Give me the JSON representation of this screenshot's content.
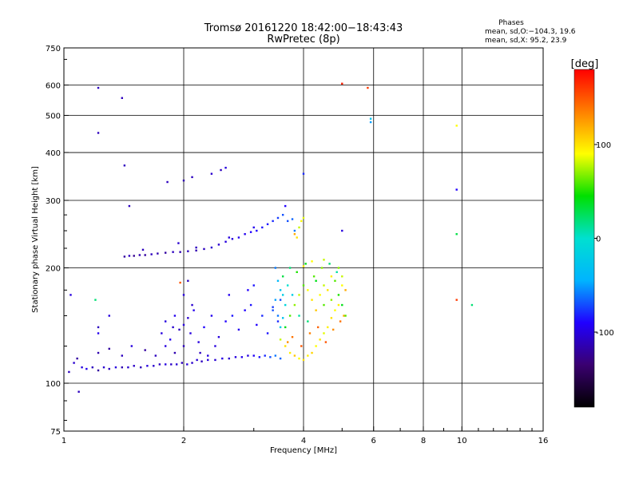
{
  "chart_data": {
    "type": "scatter",
    "title": "Tromsø 20161220 18:42:00−18:43:43",
    "subtitle": "RwPretec (8p)",
    "xlabel": "Frequency [MHz]",
    "ylabel": "Stationary phase Virtual Height [km]",
    "x_scale": "log",
    "y_scale": "log",
    "xlim": [
      1,
      16
    ],
    "ylim": [
      75,
      750
    ],
    "x_ticks": [
      1,
      2,
      4,
      6,
      8,
      10,
      16
    ],
    "x_tick_labels": [
      "1",
      "2",
      "4",
      "6",
      "8",
      "10",
      "16"
    ],
    "y_ticks": [
      75,
      100,
      200,
      300,
      400,
      500,
      600,
      750
    ],
    "y_tick_labels": [
      "75",
      "100",
      "200",
      "300",
      "400",
      "500",
      "600",
      "750"
    ],
    "grid": true,
    "grid_x": [
      2,
      4,
      6,
      8,
      10
    ],
    "grid_y": [
      100,
      200,
      300,
      400,
      500,
      600
    ],
    "stats": {
      "heading": "Phases",
      "line_o": "mean, sd,O:−104.3, 19.6",
      "line_x": "mean, sd,X:  95.2, 23.9"
    },
    "colorbar": {
      "label": "[deg]",
      "range": [
        -180,
        180
      ],
      "ticks": [
        100,
        0,
        -100
      ],
      "tick_labels": [
        "100",
        "0",
        "-100"
      ],
      "colormap": [
        "#000000",
        "#3a0070",
        "#2000ff",
        "#00b4ff",
        "#00e0d0",
        "#00e000",
        "#ffff00",
        "#ff8000",
        "#ff0000"
      ]
    },
    "series": [
      {
        "values": [
          [
            1.03,
            107,
            -110
          ],
          [
            1.06,
            113,
            -105
          ],
          [
            1.08,
            116,
            -120
          ],
          [
            1.11,
            110,
            -100
          ],
          [
            1.14,
            109,
            -95
          ],
          [
            1.18,
            110,
            -110
          ],
          [
            1.22,
            108,
            -120
          ],
          [
            1.26,
            110,
            -105
          ],
          [
            1.3,
            109,
            -110
          ],
          [
            1.35,
            110,
            -100
          ],
          [
            1.4,
            110,
            -115
          ],
          [
            1.45,
            110,
            -105
          ],
          [
            1.5,
            111,
            -108
          ],
          [
            1.56,
            110,
            -112
          ],
          [
            1.62,
            111,
            -100
          ],
          [
            1.68,
            111,
            -105
          ],
          [
            1.74,
            112,
            -110
          ],
          [
            1.8,
            112,
            -100
          ],
          [
            1.86,
            112,
            -108
          ],
          [
            1.92,
            112,
            -104
          ],
          [
            1.98,
            113,
            -110
          ],
          [
            2.04,
            112,
            -100
          ],
          [
            2.1,
            113,
            -106
          ],
          [
            2.16,
            115,
            -102
          ],
          [
            2.22,
            114,
            -110
          ],
          [
            2.3,
            115,
            -100
          ],
          [
            2.4,
            115,
            -104
          ],
          [
            2.5,
            116,
            -98
          ],
          [
            2.6,
            116,
            -105
          ],
          [
            2.7,
            117,
            -100
          ],
          [
            2.8,
            117,
            -95
          ],
          [
            2.9,
            118,
            -100
          ],
          [
            3.0,
            118,
            -92
          ],
          [
            3.1,
            117,
            -85
          ],
          [
            3.2,
            118,
            -80
          ],
          [
            3.3,
            117,
            -70
          ],
          [
            3.4,
            118,
            -60
          ],
          [
            3.5,
            116,
            -65
          ],
          [
            1.22,
            120,
            -115
          ],
          [
            1.3,
            123,
            -120
          ],
          [
            1.4,
            118,
            -110
          ],
          [
            1.48,
            125,
            -100
          ],
          [
            1.6,
            122,
            -120
          ],
          [
            1.7,
            118,
            -110
          ],
          [
            1.8,
            125,
            -100
          ],
          [
            1.9,
            120,
            -115
          ],
          [
            1.85,
            130,
            -95
          ],
          [
            1.76,
            135,
            -100
          ],
          [
            1.88,
            140,
            -105
          ],
          [
            1.95,
            138,
            -110
          ],
          [
            1.8,
            145,
            -100
          ],
          [
            1.9,
            150,
            -95
          ],
          [
            2.0,
            142,
            -100
          ],
          [
            2.05,
            148,
            -105
          ],
          [
            2.0,
            125,
            -110
          ],
          [
            2.08,
            135,
            -100
          ],
          [
            2.12,
            155,
            -95
          ],
          [
            2.18,
            128,
            -100
          ],
          [
            2.25,
            140,
            -90
          ],
          [
            2.35,
            150,
            -95
          ],
          [
            2.45,
            132,
            -100
          ],
          [
            2.55,
            145,
            -90
          ],
          [
            2.65,
            150,
            -85
          ],
          [
            2.75,
            138,
            -95
          ],
          [
            2.85,
            155,
            -90
          ],
          [
            2.95,
            160,
            -85
          ],
          [
            3.05,
            142,
            -90
          ],
          [
            3.15,
            150,
            -80
          ],
          [
            3.25,
            135,
            -85
          ],
          [
            3.35,
            158,
            -75
          ],
          [
            3.45,
            145,
            -80
          ],
          [
            3.5,
            165,
            -70
          ],
          [
            2.0,
            170,
            -100
          ],
          [
            2.05,
            185,
            -110
          ],
          [
            2.6,
            170,
            -95
          ],
          [
            2.9,
            175,
            -90
          ],
          [
            3.0,
            180,
            -85
          ],
          [
            1.3,
            150,
            -100
          ],
          [
            1.22,
            135,
            -95
          ],
          [
            2.1,
            160,
            -105
          ],
          [
            2.2,
            120,
            -110
          ],
          [
            2.4,
            125,
            -100
          ],
          [
            1.2,
            165,
            20
          ],
          [
            1.96,
            183,
            150
          ],
          [
            2.3,
            118,
            -100
          ],
          [
            1.04,
            170,
            -100
          ],
          [
            1.09,
            95,
            -110
          ],
          [
            1.22,
            140,
            -110
          ],
          [
            1.42,
            214,
            -120
          ],
          [
            1.46,
            215,
            -110
          ],
          [
            1.5,
            215,
            -125
          ],
          [
            1.55,
            216,
            -115
          ],
          [
            1.6,
            216,
            -120
          ],
          [
            1.66,
            217,
            -110
          ],
          [
            1.72,
            218,
            -115
          ],
          [
            1.8,
            219,
            -120
          ],
          [
            1.88,
            220,
            -110
          ],
          [
            1.96,
            220,
            -115
          ],
          [
            2.05,
            221,
            -110
          ],
          [
            2.15,
            222,
            -115
          ],
          [
            2.25,
            224,
            -110
          ],
          [
            2.35,
            226,
            -105
          ],
          [
            2.45,
            230,
            -105
          ],
          [
            2.55,
            234,
            -100
          ],
          [
            2.65,
            238,
            -100
          ],
          [
            2.75,
            240,
            -95
          ],
          [
            2.85,
            245,
            -95
          ],
          [
            2.95,
            248,
            -90
          ],
          [
            3.05,
            250,
            -90
          ],
          [
            3.15,
            255,
            -85
          ],
          [
            3.25,
            260,
            -85
          ],
          [
            3.35,
            265,
            -80
          ],
          [
            3.45,
            270,
            -75
          ],
          [
            3.55,
            275,
            -70
          ],
          [
            3.65,
            265,
            -70
          ],
          [
            3.75,
            268,
            -65
          ],
          [
            3.8,
            250,
            -60
          ],
          [
            1.58,
            223,
            -110
          ],
          [
            1.94,
            232,
            -105
          ],
          [
            2.15,
            226,
            -110
          ],
          [
            2.6,
            240,
            -100
          ],
          [
            3.0,
            255,
            -95
          ],
          [
            1.46,
            290,
            -110
          ],
          [
            1.82,
            335,
            -110
          ],
          [
            2.0,
            338,
            -115
          ],
          [
            2.1,
            345,
            -110
          ],
          [
            2.35,
            352,
            -105
          ],
          [
            2.48,
            360,
            -110
          ],
          [
            2.55,
            365,
            -100
          ],
          [
            3.6,
            290,
            -90
          ],
          [
            4.0,
            352,
            -80
          ],
          [
            1.42,
            370,
            -110
          ],
          [
            1.4,
            555,
            -110
          ],
          [
            1.22,
            590,
            -110
          ],
          [
            1.22,
            450,
            -110
          ],
          [
            5.0,
            605,
            170
          ],
          [
            5.8,
            590,
            160
          ],
          [
            5.9,
            490,
            -30
          ],
          [
            5.9,
            480,
            -50
          ],
          [
            5.0,
            250,
            -100
          ],
          [
            9.7,
            470,
            90
          ],
          [
            9.7,
            320,
            -90
          ],
          [
            9.7,
            245,
            30
          ],
          [
            9.7,
            165,
            160
          ],
          [
            10.6,
            160,
            20
          ],
          [
            3.5,
            130,
            80
          ],
          [
            3.6,
            125,
            100
          ],
          [
            3.7,
            120,
            95
          ],
          [
            3.8,
            118,
            110
          ],
          [
            3.9,
            116,
            90
          ],
          [
            4.0,
            115,
            100
          ],
          [
            4.1,
            118,
            95
          ],
          [
            4.2,
            120,
            105
          ],
          [
            4.3,
            125,
            90
          ],
          [
            4.4,
            130,
            100
          ],
          [
            4.5,
            135,
            85
          ],
          [
            4.6,
            140,
            95
          ],
          [
            4.7,
            148,
            100
          ],
          [
            4.8,
            155,
            90
          ],
          [
            4.9,
            160,
            95
          ],
          [
            3.6,
            140,
            40
          ],
          [
            3.7,
            150,
            60
          ],
          [
            3.8,
            160,
            70
          ],
          [
            3.9,
            170,
            80
          ],
          [
            4.0,
            180,
            60
          ],
          [
            4.1,
            175,
            90
          ],
          [
            4.2,
            165,
            100
          ],
          [
            4.3,
            155,
            110
          ],
          [
            4.4,
            170,
            90
          ],
          [
            4.5,
            180,
            80
          ],
          [
            4.6,
            175,
            100
          ],
          [
            4.7,
            190,
            95
          ],
          [
            4.8,
            185,
            60
          ],
          [
            4.9,
            200,
            70
          ],
          [
            5.0,
            180,
            90
          ],
          [
            3.55,
            190,
            30
          ],
          [
            3.7,
            200,
            20
          ],
          [
            3.85,
            195,
            50
          ],
          [
            4.05,
            205,
            40
          ],
          [
            4.25,
            190,
            60
          ],
          [
            4.45,
            200,
            70
          ],
          [
            4.65,
            205,
            20
          ],
          [
            4.85,
            195,
            10
          ],
          [
            5.0,
            190,
            80
          ],
          [
            5.1,
            175,
            120
          ],
          [
            3.65,
            128,
            130
          ],
          [
            3.75,
            132,
            140
          ],
          [
            3.95,
            125,
            150
          ],
          [
            4.15,
            135,
            135
          ],
          [
            4.35,
            140,
            145
          ],
          [
            4.55,
            128,
            150
          ],
          [
            4.75,
            138,
            130
          ],
          [
            4.95,
            145,
            140
          ],
          [
            5.05,
            150,
            120
          ],
          [
            3.6,
            160,
            -10
          ],
          [
            3.75,
            170,
            -20
          ],
          [
            3.9,
            150,
            10
          ],
          [
            4.1,
            145,
            20
          ],
          [
            4.3,
            185,
            40
          ],
          [
            4.5,
            160,
            60
          ],
          [
            4.7,
            165,
            70
          ],
          [
            4.9,
            170,
            50
          ],
          [
            5.0,
            160,
            40
          ],
          [
            5.1,
            150,
            60
          ],
          [
            3.85,
            240,
            100
          ],
          [
            3.9,
            255,
            80
          ],
          [
            3.95,
            265,
            90
          ],
          [
            4.0,
            270,
            85
          ],
          [
            3.8,
            245,
            120
          ],
          [
            4.2,
            208,
            90
          ],
          [
            4.5,
            210,
            80
          ],
          [
            4.0,
            202,
            95
          ],
          [
            3.4,
            200,
            -60
          ],
          [
            3.45,
            185,
            -40
          ],
          [
            3.5,
            175,
            -30
          ],
          [
            3.55,
            170,
            -20
          ],
          [
            3.65,
            180,
            0
          ],
          [
            3.4,
            165,
            -50
          ],
          [
            3.35,
            155,
            -70
          ],
          [
            3.45,
            150,
            -60
          ],
          [
            3.55,
            148,
            -30
          ],
          [
            3.5,
            140,
            -20
          ]
        ]
      }
    ]
  }
}
